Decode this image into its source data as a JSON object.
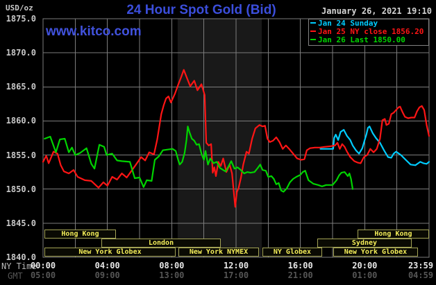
{
  "header": {
    "unit_label": "USD/oz",
    "title": "24 Hour Spot Gold (Bid)",
    "datetime": "January 26, 2021 19:10",
    "watermark": "www.kitco.com"
  },
  "legend": {
    "items": [
      {
        "label": "Jan 24 Sunday",
        "color": "#00ccff"
      },
      {
        "label": "Jan 25 NY close 1856.20",
        "color": "#ff1515"
      },
      {
        "label": "Jan 26 Last 1850.00",
        "color": "#00d400"
      }
    ]
  },
  "x_axis": {
    "ny_label": "NY Time",
    "gmt_label": "GMT",
    "ticks": [
      {
        "hour": 0,
        "ny": "00:00",
        "gmt": "05:00"
      },
      {
        "hour": 4,
        "ny": "04:00",
        "gmt": "09:00"
      },
      {
        "hour": 8,
        "ny": "08:00",
        "gmt": "13:00"
      },
      {
        "hour": 12,
        "ny": "12:00",
        "gmt": "17:00"
      },
      {
        "hour": 16,
        "ny": "16:00",
        "gmt": "21:00"
      },
      {
        "hour": 20,
        "ny": "20:00",
        "gmt": "01:00"
      },
      {
        "hour": 24,
        "ny": "23:59",
        "gmt": "04:59"
      }
    ]
  },
  "sessions": {
    "text_color": "#f5ef5a",
    "border_color": "#a3a355",
    "rows": [
      {
        "boxes": [
          {
            "label": "Hong Kong",
            "start": 0.09,
            "end": 4.53
          },
          {
            "label": "Hong Kong",
            "start": 19.55,
            "end": 24.0
          }
        ]
      },
      {
        "boxes": [
          {
            "label": "London",
            "start": 3.63,
            "end": 11.05
          },
          {
            "label": "Sydney",
            "start": 17.05,
            "end": 22.92
          }
        ]
      },
      {
        "boxes": [
          {
            "label": "New York Globex",
            "start": 0.09,
            "end": 8.24
          },
          {
            "label": "New York NYMEX",
            "start": 8.42,
            "end": 13.42
          },
          {
            "label": "NY Globex",
            "start": 13.64,
            "end": 17.35
          },
          {
            "label": "New York Globex",
            "start": 18.04,
            "end": 23.31
          }
        ]
      }
    ]
  },
  "chart_data": {
    "type": "line",
    "title": "24 Hour Spot Gold (Bid)",
    "xlabel": "NY Time (hours 00:00-23:59)",
    "ylabel": "USD/oz",
    "ylim": [
      1840,
      1875
    ],
    "y_ticks": [
      1875,
      1870,
      1865,
      1860,
      1855,
      1850,
      1845,
      1840
    ],
    "x_range_hours": [
      0,
      24
    ],
    "x_gridline_interval_hours": 2,
    "grid": true,
    "legend_position": "top-right",
    "shaded_band_hours": [
      8.37,
      13.6
    ],
    "colors": {
      "grid": "#7d7d7d",
      "band": "#191919",
      "background": "#000000"
    },
    "series": [
      {
        "name": "Jan 24 Sunday",
        "color": "#00ccff",
        "points": [
          [
            17.25,
            1855.9
          ],
          [
            18.04,
            1855.9
          ],
          [
            18.1,
            1857.5
          ],
          [
            18.2,
            1858.0
          ],
          [
            18.35,
            1857.2
          ],
          [
            18.5,
            1858.4
          ],
          [
            18.7,
            1858.7
          ],
          [
            18.9,
            1857.8
          ],
          [
            19.1,
            1857.2
          ],
          [
            19.25,
            1856.4
          ],
          [
            19.45,
            1855.7
          ],
          [
            19.65,
            1855.2
          ],
          [
            19.85,
            1856.0
          ],
          [
            20.0,
            1857.2
          ],
          [
            20.1,
            1858.0
          ],
          [
            20.2,
            1859.0
          ],
          [
            20.3,
            1859.2
          ],
          [
            20.5,
            1858.2
          ],
          [
            20.7,
            1857.5
          ],
          [
            20.95,
            1856.8
          ],
          [
            21.2,
            1855.7
          ],
          [
            21.45,
            1854.7
          ],
          [
            21.65,
            1854.6
          ],
          [
            21.8,
            1855.2
          ],
          [
            21.95,
            1855.5
          ],
          [
            22.25,
            1855.0
          ],
          [
            22.55,
            1854.3
          ],
          [
            22.85,
            1853.6
          ],
          [
            23.15,
            1853.5
          ],
          [
            23.45,
            1854.0
          ],
          [
            23.65,
            1853.8
          ],
          [
            23.85,
            1853.7
          ],
          [
            24.0,
            1854.0
          ]
        ]
      },
      {
        "name": "Jan 25 NY close 1856.20",
        "color": "#ff1515",
        "points": [
          [
            0.0,
            1854.0
          ],
          [
            0.2,
            1854.9
          ],
          [
            0.35,
            1853.8
          ],
          [
            0.65,
            1855.5
          ],
          [
            0.9,
            1855.2
          ],
          [
            1.1,
            1853.5
          ],
          [
            1.3,
            1852.6
          ],
          [
            1.6,
            1852.3
          ],
          [
            1.9,
            1852.8
          ],
          [
            2.15,
            1851.8
          ],
          [
            2.6,
            1851.3
          ],
          [
            3.0,
            1851.2
          ],
          [
            3.45,
            1850.2
          ],
          [
            3.75,
            1851.0
          ],
          [
            4.0,
            1850.5
          ],
          [
            4.3,
            1851.8
          ],
          [
            4.6,
            1851.4
          ],
          [
            4.9,
            1852.3
          ],
          [
            5.2,
            1851.7
          ],
          [
            5.75,
            1853.5
          ],
          [
            6.1,
            1854.7
          ],
          [
            6.35,
            1854.2
          ],
          [
            6.6,
            1855.4
          ],
          [
            6.9,
            1855.1
          ],
          [
            7.1,
            1857.3
          ],
          [
            7.35,
            1861.0
          ],
          [
            7.5,
            1862.3
          ],
          [
            7.65,
            1863.3
          ],
          [
            7.8,
            1863.6
          ],
          [
            7.95,
            1862.7
          ],
          [
            8.2,
            1864.0
          ],
          [
            8.4,
            1865.3
          ],
          [
            8.6,
            1866.5
          ],
          [
            8.75,
            1867.5
          ],
          [
            8.95,
            1866.3
          ],
          [
            9.15,
            1865.1
          ],
          [
            9.4,
            1865.9
          ],
          [
            9.6,
            1864.5
          ],
          [
            9.85,
            1865.4
          ],
          [
            10.05,
            1863.8
          ],
          [
            10.15,
            1856.8
          ],
          [
            10.3,
            1856.4
          ],
          [
            10.45,
            1856.6
          ],
          [
            10.55,
            1852.4
          ],
          [
            10.65,
            1853.2
          ],
          [
            10.75,
            1851.9
          ],
          [
            10.9,
            1854.0
          ],
          [
            11.05,
            1853.4
          ],
          [
            11.2,
            1854.5
          ],
          [
            11.4,
            1852.5
          ],
          [
            11.6,
            1853.6
          ],
          [
            11.75,
            1852.3
          ],
          [
            11.88,
            1849.1
          ],
          [
            11.95,
            1847.4
          ],
          [
            12.05,
            1849.6
          ],
          [
            12.15,
            1850.1
          ],
          [
            12.3,
            1851.6
          ],
          [
            12.45,
            1853.6
          ],
          [
            12.65,
            1855.5
          ],
          [
            12.8,
            1855.2
          ],
          [
            13.0,
            1857.4
          ],
          [
            13.2,
            1858.9
          ],
          [
            13.45,
            1859.4
          ],
          [
            13.65,
            1859.2
          ],
          [
            13.8,
            1859.3
          ],
          [
            13.95,
            1857.4
          ],
          [
            14.1,
            1856.9
          ],
          [
            14.3,
            1857.1
          ],
          [
            14.5,
            1857.6
          ],
          [
            14.7,
            1856.9
          ],
          [
            14.9,
            1855.9
          ],
          [
            15.1,
            1856.4
          ],
          [
            15.3,
            1855.9
          ],
          [
            15.55,
            1855.2
          ],
          [
            15.8,
            1854.5
          ],
          [
            16.05,
            1854.3
          ],
          [
            16.25,
            1854.4
          ],
          [
            16.4,
            1855.7
          ],
          [
            16.6,
            1856.0
          ],
          [
            16.9,
            1856.1
          ],
          [
            17.2,
            1856.1
          ],
          [
            17.5,
            1856.2
          ],
          [
            17.9,
            1856.3
          ],
          [
            18.15,
            1856.4
          ],
          [
            18.3,
            1856.8
          ],
          [
            18.45,
            1855.9
          ],
          [
            18.6,
            1856.6
          ],
          [
            18.75,
            1856.2
          ],
          [
            18.9,
            1855.5
          ],
          [
            19.1,
            1854.7
          ],
          [
            19.35,
            1854.1
          ],
          [
            19.55,
            1853.9
          ],
          [
            19.75,
            1853.8
          ],
          [
            19.95,
            1854.7
          ],
          [
            20.15,
            1855.0
          ],
          [
            20.35,
            1855.9
          ],
          [
            20.55,
            1855.4
          ],
          [
            20.75,
            1855.9
          ],
          [
            20.95,
            1857.4
          ],
          [
            21.1,
            1860.1
          ],
          [
            21.25,
            1860.3
          ],
          [
            21.35,
            1859.4
          ],
          [
            21.5,
            1859.6
          ],
          [
            21.65,
            1861.0
          ],
          [
            21.8,
            1861.2
          ],
          [
            21.95,
            1861.6
          ],
          [
            22.1,
            1862.0
          ],
          [
            22.2,
            1862.1
          ],
          [
            22.35,
            1861.3
          ],
          [
            22.5,
            1860.6
          ],
          [
            22.7,
            1860.4
          ],
          [
            22.9,
            1860.5
          ],
          [
            23.1,
            1860.5
          ],
          [
            23.25,
            1861.4
          ],
          [
            23.4,
            1862.0
          ],
          [
            23.55,
            1862.2
          ],
          [
            23.7,
            1861.6
          ],
          [
            23.85,
            1859.4
          ],
          [
            24.0,
            1857.8
          ]
        ]
      },
      {
        "name": "Jan 26 Last 1850.00",
        "color": "#00d400",
        "points": [
          [
            0.1,
            1857.4
          ],
          [
            0.45,
            1857.7
          ],
          [
            0.8,
            1855.4
          ],
          [
            1.05,
            1857.3
          ],
          [
            1.35,
            1857.4
          ],
          [
            1.6,
            1855.4
          ],
          [
            1.8,
            1856.1
          ],
          [
            2.0,
            1855.0
          ],
          [
            2.3,
            1855.3
          ],
          [
            2.7,
            1856.0
          ],
          [
            3.0,
            1853.7
          ],
          [
            3.2,
            1853.0
          ],
          [
            3.5,
            1856.5
          ],
          [
            3.8,
            1856.2
          ],
          [
            3.95,
            1855.0
          ],
          [
            4.3,
            1855.2
          ],
          [
            4.6,
            1854.2
          ],
          [
            4.9,
            1854.1
          ],
          [
            5.4,
            1854.0
          ],
          [
            5.7,
            1851.6
          ],
          [
            6.0,
            1851.7
          ],
          [
            6.25,
            1850.3
          ],
          [
            6.45,
            1851.3
          ],
          [
            6.75,
            1851.2
          ],
          [
            6.95,
            1854.3
          ],
          [
            7.2,
            1854.8
          ],
          [
            7.45,
            1855.7
          ],
          [
            7.75,
            1855.8
          ],
          [
            8.05,
            1855.9
          ],
          [
            8.25,
            1855.6
          ],
          [
            8.4,
            1854.3
          ],
          [
            8.5,
            1853.6
          ],
          [
            8.65,
            1854.0
          ],
          [
            8.8,
            1855.3
          ],
          [
            8.92,
            1857.2
          ],
          [
            9.0,
            1859.2
          ],
          [
            9.1,
            1858.4
          ],
          [
            9.25,
            1857.4
          ],
          [
            9.4,
            1857.1
          ],
          [
            9.55,
            1856.5
          ],
          [
            9.7,
            1856.6
          ],
          [
            9.85,
            1855.2
          ],
          [
            10.0,
            1854.3
          ],
          [
            10.1,
            1855.6
          ],
          [
            10.25,
            1853.6
          ],
          [
            10.4,
            1854.5
          ],
          [
            10.6,
            1853.8
          ],
          [
            10.8,
            1854.0
          ],
          [
            11.0,
            1853.1
          ],
          [
            11.2,
            1852.8
          ],
          [
            11.35,
            1852.6
          ],
          [
            11.5,
            1853.2
          ],
          [
            11.7,
            1854.1
          ],
          [
            11.9,
            1853.0
          ],
          [
            12.1,
            1853.2
          ],
          [
            12.3,
            1852.8
          ],
          [
            12.5,
            1852.3
          ],
          [
            12.7,
            1852.5
          ],
          [
            12.9,
            1852.4
          ],
          [
            13.15,
            1852.5
          ],
          [
            13.35,
            1853.1
          ],
          [
            13.5,
            1853.6
          ],
          [
            13.65,
            1852.8
          ],
          [
            13.85,
            1852.7
          ],
          [
            14.0,
            1851.8
          ],
          [
            14.2,
            1851.9
          ],
          [
            14.35,
            1851.5
          ],
          [
            14.5,
            1850.7
          ],
          [
            14.65,
            1850.9
          ],
          [
            14.8,
            1849.8
          ],
          [
            14.95,
            1849.6
          ],
          [
            15.15,
            1850.1
          ],
          [
            15.35,
            1851.0
          ],
          [
            15.55,
            1851.5
          ],
          [
            15.75,
            1851.8
          ],
          [
            16.0,
            1852.1
          ],
          [
            16.15,
            1852.5
          ],
          [
            16.3,
            1852.7
          ],
          [
            16.5,
            1851.3
          ],
          [
            16.8,
            1850.8
          ],
          [
            17.1,
            1850.6
          ],
          [
            17.35,
            1850.4
          ],
          [
            17.6,
            1850.6
          ],
          [
            18.0,
            1850.6
          ],
          [
            18.25,
            1851.3
          ],
          [
            18.4,
            1852.0
          ],
          [
            18.55,
            1852.4
          ],
          [
            18.75,
            1852.5
          ],
          [
            18.95,
            1851.9
          ],
          [
            19.05,
            1852.3
          ],
          [
            19.15,
            1851.5
          ],
          [
            19.25,
            1850.0
          ]
        ]
      }
    ]
  }
}
